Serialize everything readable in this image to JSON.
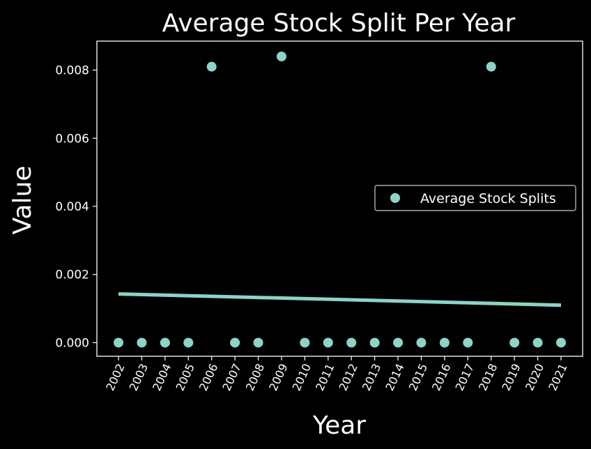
{
  "chart_data": {
    "type": "scatter",
    "title": "Average Stock Split Per Year",
    "xlabel": "Year",
    "ylabel": "Value",
    "categories": [
      "2002",
      "2003",
      "2004",
      "2005",
      "2006",
      "2007",
      "2008",
      "2009",
      "2010",
      "2011",
      "2012",
      "2013",
      "2014",
      "2015",
      "2016",
      "2017",
      "2018",
      "2019",
      "2020",
      "2021"
    ],
    "series": [
      {
        "name": "Average Stock Splits",
        "values": [
          0,
          0,
          0,
          0,
          0.0081,
          0,
          0,
          0.0084,
          0,
          0,
          0,
          0,
          0,
          0,
          0,
          0,
          0.0081,
          0,
          0,
          0
        ]
      }
    ],
    "trend_line": {
      "start": 0.00143,
      "end": 0.0011
    },
    "yticks": [
      "0.000",
      "0.002",
      "0.004",
      "0.006",
      "0.008"
    ],
    "ytick_values": [
      0,
      0.002,
      0.004,
      0.006,
      0.008
    ],
    "ylim": [
      -0.0004,
      0.00885
    ],
    "grid": false,
    "legend_position": "center-right",
    "colors": {
      "background": "#000000",
      "marker": "#8dd3c7",
      "text": "#ffffff"
    }
  }
}
